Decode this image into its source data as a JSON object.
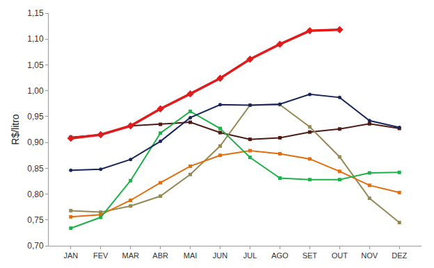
{
  "chart_data": {
    "type": "line",
    "y_label": "R$/litro",
    "categories": [
      "JAN",
      "FEV",
      "MAR",
      "ABR",
      "MAI",
      "JUN",
      "JUL",
      "AGO",
      "SET",
      "OUT",
      "NOV",
      "DEZ"
    ],
    "series": [
      {
        "color": "#4d1a14",
        "marker": "square",
        "line_style": "solid",
        "values": [
          0.91,
          0.915,
          0.932,
          0.935,
          0.939,
          0.919,
          0.906,
          0.909,
          0.92,
          0.926,
          0.936,
          0.927
        ]
      },
      {
        "color": "#938953",
        "marker": "square",
        "line_style": "solid",
        "values": [
          0.768,
          0.765,
          0.777,
          0.796,
          0.838,
          0.893,
          0.972,
          0.973,
          0.93,
          0.872,
          0.792,
          0.745
        ]
      },
      {
        "color": "#e46c0a",
        "marker": "square",
        "line_style": "solid",
        "values": [
          0.756,
          0.76,
          0.788,
          0.822,
          0.854,
          0.875,
          0.884,
          0.878,
          0.868,
          0.844,
          0.817,
          0.803
        ]
      },
      {
        "color": "#1eb04a",
        "marker": "square",
        "line_style": "solid",
        "values": [
          0.734,
          0.755,
          0.826,
          0.918,
          0.96,
          0.927,
          0.871,
          0.831,
          0.828,
          0.828,
          0.841,
          0.842
        ]
      },
      {
        "color": "#17255a",
        "marker": "circle",
        "line_style": "solid",
        "values": [
          0.846,
          0.848,
          0.867,
          0.902,
          0.948,
          0.973,
          0.972,
          0.974,
          0.993,
          0.987,
          0.942,
          0.929
        ]
      },
      {
        "color": "#e01b1b",
        "marker": "diamond",
        "line_style": "thick",
        "values": [
          0.908,
          0.915,
          0.932,
          0.965,
          0.994,
          1.024,
          1.061,
          1.09,
          1.116,
          1.118,
          null,
          null
        ]
      }
    ],
    "ylim": [
      0.7,
      1.15
    ],
    "yticks": [
      {
        "value": 0.7,
        "label": "0,70"
      },
      {
        "value": 0.75,
        "label": "0,75"
      },
      {
        "value": 0.8,
        "label": "0,80"
      },
      {
        "value": 0.85,
        "label": "0,85"
      },
      {
        "value": 0.9,
        "label": "0,90"
      },
      {
        "value": 0.95,
        "label": "0,95"
      },
      {
        "value": 1.0,
        "label": "1,00"
      },
      {
        "value": 1.05,
        "label": "1,05"
      },
      {
        "value": 1.1,
        "label": "1,10"
      },
      {
        "value": 1.15,
        "label": "1,15"
      }
    ],
    "grid": false
  }
}
